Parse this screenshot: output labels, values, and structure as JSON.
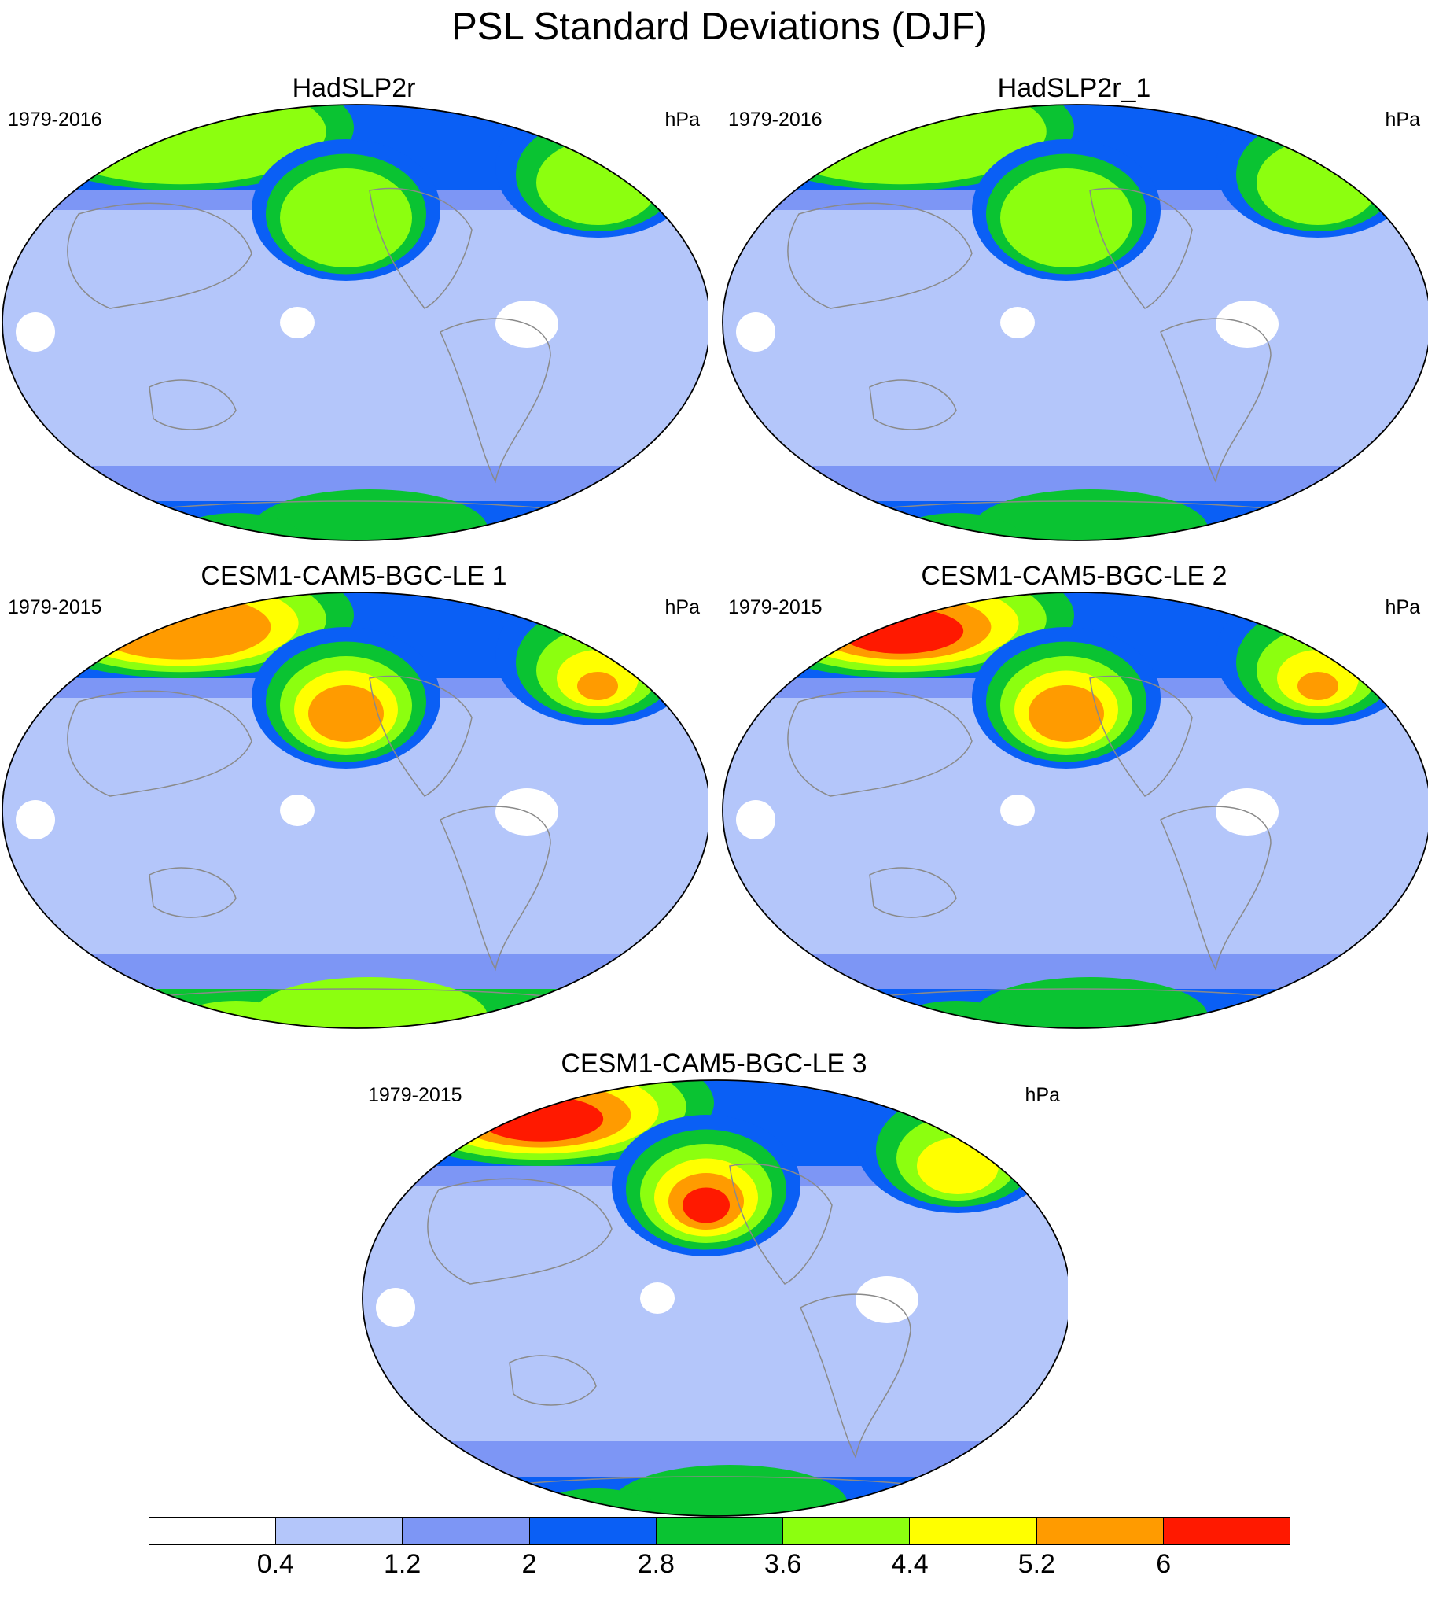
{
  "figure": {
    "title": "PSL Standard Deviations (DJF)"
  },
  "panels": [
    {
      "title": "HadSLP2r",
      "period": "1979-2016",
      "units": "hPa",
      "features": {
        "nAtlantic": 5,
        "nPacific": 5,
        "eurasia": 2,
        "asia": 3,
        "southern": 4
      }
    },
    {
      "title": "HadSLP2r_1",
      "period": "1979-2016",
      "units": "hPa",
      "features": {
        "nAtlantic": 5,
        "nPacific": 5,
        "eurasia": 2,
        "asia": 3,
        "southern": 4
      }
    },
    {
      "title": "CESM1-CAM5-BGC-LE 1",
      "period": "1979-2015",
      "units": "hPa",
      "features": {
        "nAtlantic": 7,
        "nPacific": 7,
        "eurasia": 4,
        "asia": 4,
        "southern": 5
      }
    },
    {
      "title": "CESM1-CAM5-BGC-LE 2",
      "period": "1979-2015",
      "units": "hPa",
      "features": {
        "nAtlantic": 8,
        "nPacific": 7,
        "eurasia": 4,
        "asia": 4,
        "southern": 4
      }
    },
    {
      "title": "CESM1-CAM5-BGC-LE 3",
      "period": "1979-2015",
      "units": "hPa",
      "features": {
        "nAtlantic": 8,
        "nPacific": 8,
        "eurasia": 3,
        "asia": 4,
        "southern": 4
      }
    }
  ],
  "colorbar": {
    "levels": [
      "0.4",
      "1.2",
      "2",
      "2.8",
      "3.6",
      "4.4",
      "5.2",
      "6"
    ],
    "colors": [
      "#ffffff",
      "#b4c6fa",
      "#7d96f5",
      "#0a5ff5",
      "#0ac332",
      "#8cff0f",
      "#ffff00",
      "#ff9b00",
      "#ff1900"
    ]
  }
}
